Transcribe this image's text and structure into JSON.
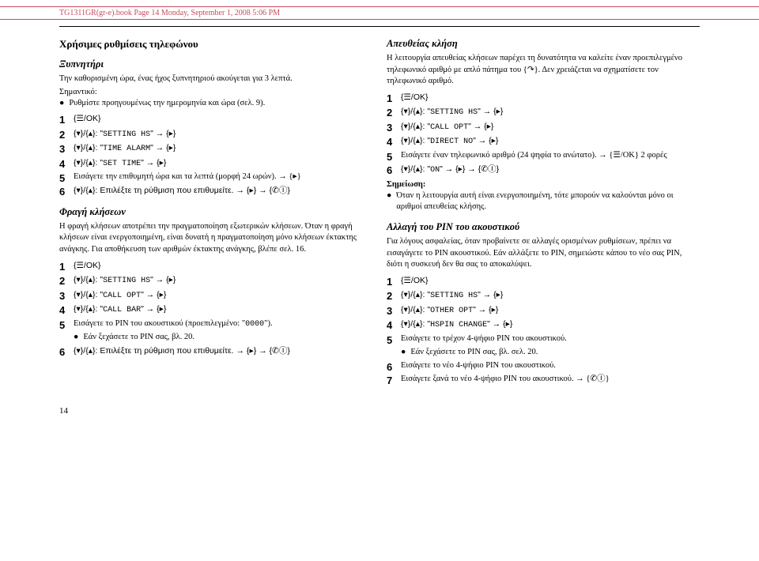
{
  "header_text": "TG1311GR(gr-e).book  Page 14  Monday, September 1, 2008  5:06 PM",
  "page_number": "14",
  "left": {
    "title": "Χρήσιμες ρυθμίσεις τηλεφώνου",
    "s1": {
      "title": "Ξυπνητήρι",
      "p1": "Την καθορισμένη ώρα, ένας ήχος ξυπνητηριού ακούγεται για 3 λεπτά.",
      "note_label": "Σημαντικό:",
      "bul1": "Ρυθμίστε προηγουμένως την ημερομηνία και ώρα (σελ. 9).",
      "st1": "{☰/OK}",
      "st2a": "{▾}/{▴}: \"",
      "st2b": "SETTING HS",
      "st2c": "\" → {▸}",
      "st3a": "{▾}/{▴}: \"",
      "st3b": "TIME ALARM",
      "st3c": "\" → {▸}",
      "st4a": "{▾}/{▴}: \"",
      "st4b": "SET TIME",
      "st4c": "\" → {▸}",
      "st5": "Εισάγετε την επιθυμητή ώρα και τα λεπτά (μορφή 24 ωρών). → {▸}",
      "st6": "{▾}/{▴}: Επιλέξτε τη ρύθμιση που επιθυμείτε. → {▸} → {✆Ⓘ}"
    },
    "s2": {
      "title": "Φραγή κλήσεων",
      "p1": "Η φραγή κλήσεων αποτρέπει την πραγματοποίηση εξωτερικών κλήσεων. Όταν η φραγή κλήσεων είναι ενεργοποιημένη, είναι δυνατή η πραγματοποίηση μόνο κλήσεων έκτακτης ανάγκης. Για αποθήκευση των αριθμών έκτακτης ανάγκης, βλέπε σελ. 16.",
      "st1": "{☰/OK}",
      "st2a": "{▾}/{▴}: \"",
      "st2b": "SETTING HS",
      "st2c": "\" → {▸}",
      "st3a": "{▾}/{▴}: \"",
      "st3b": "CALL OPT",
      "st3c": "\" → {▸}",
      "st4a": "{▾}/{▴}: \"",
      "st4b": "CALL BAR",
      "st4c": "\" → {▸}",
      "st5a": "Εισάγετε το PIN του ακουστικού (προεπιλεγμένο: \"",
      "st5b": "0000",
      "st5c": "\").",
      "st5bul": "Εάν ξεχάσετε το PIN σας, βλ. 20.",
      "st6": "{▾}/{▴}: Επιλέξτε τη ρύθμιση που επιθυμείτε. → {▸} → {✆Ⓘ}"
    }
  },
  "right": {
    "s1": {
      "title": "Απευθείας κλήση",
      "p1": "Η λειτουργία απευθείας κλήσεων παρέχει τη δυνατότητα να καλείτε έναν προεπιλεγμένο τηλεφωνικό αριθμό με απλό πάτημα του {↷}. Δεν χρειάζεται να σχηματίσετε τον τηλεφωνικό αριθμό.",
      "st1": "{☰/OK}",
      "st2a": "{▾}/{▴}: \"",
      "st2b": "SETTING HS",
      "st2c": "\" → {▸}",
      "st3a": "{▾}/{▴}: \"",
      "st3b": "CALL OPT",
      "st3c": "\" → {▸}",
      "st4a": "{▾}/{▴}: \"",
      "st4b": "DIRECT NO",
      "st4c": "\" → {▸}",
      "st5": "Εισάγετε έναν τηλεφωνικό αριθμό (24 ψηφία το ανώτατο). → {☰/OK} 2 φορές",
      "st6a": "{▾}/{▴}: \"",
      "st6b": "ON",
      "st6c": "\" → {▸} → {✆Ⓘ}",
      "note_label": "Σημείωση:",
      "bul1": "Όταν η λειτουργία αυτή είναι ενεργοποιημένη, τότε μπορούν να καλούνται μόνο οι αριθμοί απευθείας κλήσης."
    },
    "s2": {
      "title": "Αλλαγή του PIN του ακουστικού",
      "p1": "Για λόγους ασφαλείας, όταν προβαίνετε σε αλλαγές ορισμένων ρυθμίσεων, πρέπει να εισαγάγετε το PIN ακουστικού. Εάν αλλάξετε το PIN, σημειώστε κάπου το νέο σας PIN, διότι η συσκευή δεν θα σας το αποκαλύψει.",
      "st1": "{☰/OK}",
      "st2a": "{▾}/{▴}: \"",
      "st2b": "SETTING HS",
      "st2c": "\" → {▸}",
      "st3a": "{▾}/{▴}: \"",
      "st3b": "OTHER OPT",
      "st3c": "\" → {▸}",
      "st4a": "{▾}/{▴}: \"",
      "st4b": "HSPIN CHANGE",
      "st4c": "\" → {▸}",
      "st5": "Εισάγετε το τρέχον 4-ψήφιο PIN του ακουστικού.",
      "st5bul": "Εάν ξεχάσετε το PIN σας, βλ. σελ. 20.",
      "st6": "Εισάγετε το νέο 4-ψήφιο PIN του ακουστικού.",
      "st7": "Εισάγετε ξανά το νέο 4-ψήφιο PIN του ακουστικού. → {✆Ⓘ}"
    }
  }
}
